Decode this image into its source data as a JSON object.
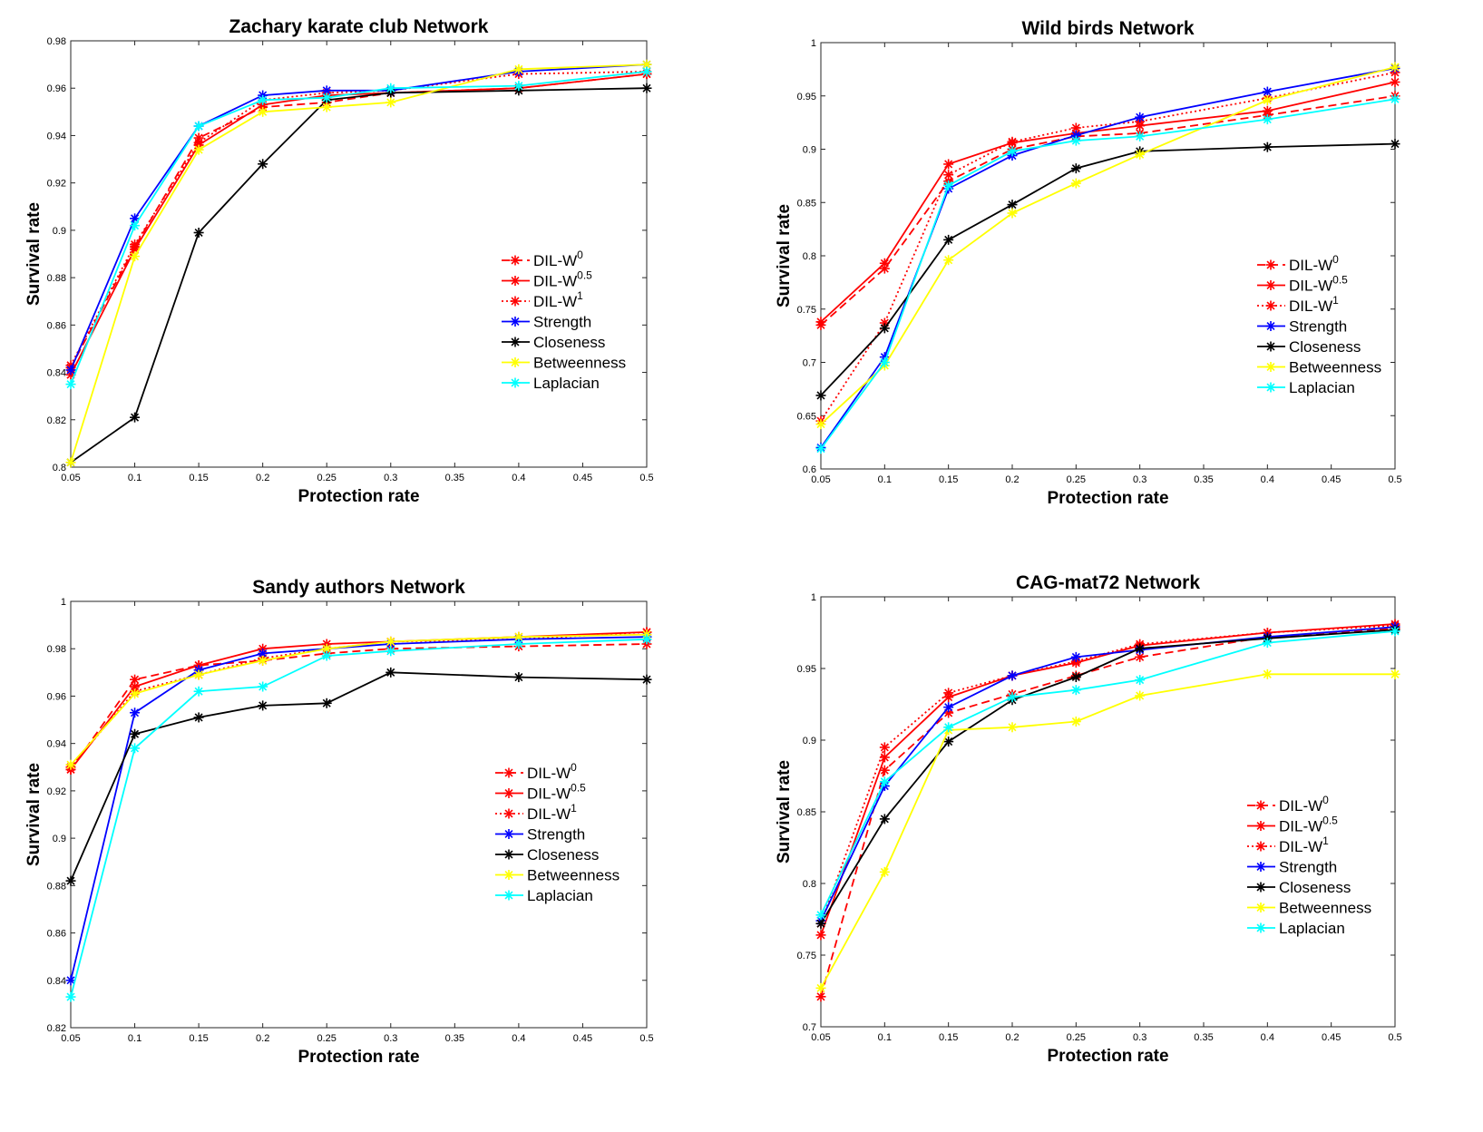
{
  "figure": {
    "legend_labels": [
      {
        "base": "DIL-W",
        "sup": "0"
      },
      {
        "base": "DIL-W",
        "sup": "0.5"
      },
      {
        "base": "DIL-W",
        "sup": "1"
      },
      {
        "base": "Strength",
        "sup": ""
      },
      {
        "base": "Closeness",
        "sup": ""
      },
      {
        "base": "Betweenness",
        "sup": ""
      },
      {
        "base": "Laplacian",
        "sup": ""
      }
    ],
    "colors": {
      "DIL-W0": "#ff0000",
      "DIL-W0.5": "#ff0000",
      "DIL-W1": "#ff0000",
      "Strength": "#0000ff",
      "Closeness": "#000000",
      "Betweenness": "#ffff00",
      "Laplacian": "#00ffff"
    }
  },
  "chart_data": [
    {
      "type": "line",
      "title": "Zachary karate club Network",
      "xlabel": "Protection rate",
      "ylabel": "Survival rate",
      "x": [
        0.05,
        0.1,
        0.15,
        0.2,
        0.25,
        0.3,
        0.4,
        0.5
      ],
      "xlim": [
        0.05,
        0.5
      ],
      "ylim": [
        0.8,
        0.98
      ],
      "xticks": [
        "0.05",
        "0.1",
        "0.15",
        "0.2",
        "0.25",
        "0.3",
        "0.35",
        "0.4",
        "0.45",
        "0.5"
      ],
      "yticks": [
        "0.8",
        "0.82",
        "0.84",
        "0.86",
        "0.88",
        "0.9",
        "0.92",
        "0.94",
        "0.96",
        "0.98"
      ],
      "legend_position": "right-middle",
      "series": [
        {
          "name": "DIL-W0",
          "values": [
            0.842,
            0.893,
            0.939,
            0.952,
            0.954,
            0.958,
            0.96,
            0.966
          ]
        },
        {
          "name": "DIL-W0.5",
          "values": [
            0.839,
            0.892,
            0.936,
            0.953,
            0.957,
            0.958,
            0.96,
            0.966
          ]
        },
        {
          "name": "DIL-W1",
          "values": [
            0.843,
            0.894,
            0.937,
            0.955,
            0.958,
            0.959,
            0.966,
            0.967
          ]
        },
        {
          "name": "Strength",
          "values": [
            0.841,
            0.905,
            0.944,
            0.957,
            0.959,
            0.959,
            0.967,
            0.97
          ]
        },
        {
          "name": "Closeness",
          "values": [
            0.802,
            0.821,
            0.899,
            0.928,
            0.955,
            0.958,
            0.959,
            0.96
          ]
        },
        {
          "name": "Betweenness",
          "values": [
            0.802,
            0.889,
            0.934,
            0.95,
            0.952,
            0.954,
            0.968,
            0.97
          ]
        },
        {
          "name": "Laplacian",
          "values": [
            0.835,
            0.902,
            0.944,
            0.955,
            0.956,
            0.96,
            0.961,
            0.967
          ]
        }
      ]
    },
    {
      "type": "line",
      "title": "Wild birds Network",
      "xlabel": "Protection rate",
      "ylabel": "Survival rate",
      "x": [
        0.05,
        0.1,
        0.15,
        0.2,
        0.25,
        0.3,
        0.4,
        0.5
      ],
      "xlim": [
        0.05,
        0.5
      ],
      "ylim": [
        0.6,
        1.0
      ],
      "xticks": [
        "0.05",
        "0.1",
        "0.15",
        "0.2",
        "0.25",
        "0.3",
        "0.35",
        "0.4",
        "0.45",
        "0.5"
      ],
      "yticks": [
        "0.6",
        "0.65",
        "0.7",
        "0.75",
        "0.8",
        "0.85",
        "0.9",
        "0.95",
        "1"
      ],
      "legend_position": "right-middle",
      "series": [
        {
          "name": "DIL-W0",
          "values": [
            0.735,
            0.788,
            0.87,
            0.9,
            0.912,
            0.915,
            0.932,
            0.95
          ]
        },
        {
          "name": "DIL-W0.5",
          "values": [
            0.738,
            0.793,
            0.886,
            0.906,
            0.915,
            0.922,
            0.936,
            0.963
          ]
        },
        {
          "name": "DIL-W1",
          "values": [
            0.645,
            0.737,
            0.876,
            0.907,
            0.92,
            0.926,
            0.948,
            0.972
          ]
        },
        {
          "name": "Strength",
          "values": [
            0.62,
            0.705,
            0.863,
            0.894,
            0.913,
            0.93,
            0.954,
            0.976
          ]
        },
        {
          "name": "Closeness",
          "values": [
            0.669,
            0.732,
            0.815,
            0.848,
            0.882,
            0.898,
            0.902,
            0.905
          ]
        },
        {
          "name": "Betweenness",
          "values": [
            0.642,
            0.697,
            0.796,
            0.84,
            0.868,
            0.895,
            0.946,
            0.977
          ]
        },
        {
          "name": "Laplacian",
          "values": [
            0.619,
            0.7,
            0.866,
            0.898,
            0.908,
            0.912,
            0.928,
            0.947
          ]
        }
      ]
    },
    {
      "type": "line",
      "title": "Sandy authors Network",
      "xlabel": "Protection rate",
      "ylabel": "Survival rate",
      "x": [
        0.05,
        0.1,
        0.15,
        0.2,
        0.25,
        0.3,
        0.4,
        0.5
      ],
      "xlim": [
        0.05,
        0.5
      ],
      "ylim": [
        0.82,
        1.0
      ],
      "xticks": [
        "0.05",
        "0.1",
        "0.15",
        "0.2",
        "0.25",
        "0.3",
        "0.35",
        "0.4",
        "0.45",
        "0.5"
      ],
      "yticks": [
        "0.82",
        "0.84",
        "0.86",
        "0.88",
        "0.9",
        "0.92",
        "0.94",
        "0.96",
        "0.98",
        "1"
      ],
      "legend_position": "right-middle",
      "series": [
        {
          "name": "DIL-W0",
          "values": [
            0.929,
            0.967,
            0.973,
            0.975,
            0.978,
            0.98,
            0.981,
            0.982
          ]
        },
        {
          "name": "DIL-W0.5",
          "values": [
            0.929,
            0.964,
            0.973,
            0.98,
            0.982,
            0.983,
            0.985,
            0.987
          ]
        },
        {
          "name": "DIL-W1",
          "values": [
            0.93,
            0.962,
            0.969,
            0.976,
            0.98,
            0.983,
            0.984,
            0.987
          ]
        },
        {
          "name": "Strength",
          "values": [
            0.84,
            0.953,
            0.971,
            0.978,
            0.98,
            0.982,
            0.984,
            0.985
          ]
        },
        {
          "name": "Closeness",
          "values": [
            0.882,
            0.944,
            0.951,
            0.956,
            0.957,
            0.97,
            0.968,
            0.967
          ]
        },
        {
          "name": "Betweenness",
          "values": [
            0.931,
            0.961,
            0.969,
            0.975,
            0.98,
            0.983,
            0.985,
            0.986
          ]
        },
        {
          "name": "Laplacian",
          "values": [
            0.833,
            0.938,
            0.962,
            0.964,
            0.977,
            0.979,
            0.982,
            0.984
          ]
        }
      ]
    },
    {
      "type": "line",
      "title": "CAG-mat72 Network",
      "xlabel": "Protection rate",
      "ylabel": "Survival rate",
      "x": [
        0.05,
        0.1,
        0.15,
        0.2,
        0.25,
        0.3,
        0.4,
        0.5
      ],
      "xlim": [
        0.05,
        0.5
      ],
      "ylim": [
        0.7,
        1.0
      ],
      "xticks": [
        "0.05",
        "0.1",
        "0.15",
        "0.2",
        "0.25",
        "0.3",
        "0.35",
        "0.4",
        "0.45",
        "0.5"
      ],
      "yticks": [
        "0.7",
        "0.75",
        "0.8",
        "0.85",
        "0.9",
        "0.95",
        "1"
      ],
      "legend_position": "right-lower",
      "series": [
        {
          "name": "DIL-W0",
          "values": [
            0.721,
            0.879,
            0.919,
            0.932,
            0.945,
            0.958,
            0.972,
            0.978
          ]
        },
        {
          "name": "DIL-W0.5",
          "values": [
            0.764,
            0.888,
            0.93,
            0.945,
            0.954,
            0.966,
            0.975,
            0.981
          ]
        },
        {
          "name": "DIL-W1",
          "values": [
            0.772,
            0.895,
            0.933,
            0.945,
            0.955,
            0.967,
            0.975,
            0.98
          ]
        },
        {
          "name": "Strength",
          "values": [
            0.774,
            0.868,
            0.923,
            0.945,
            0.958,
            0.963,
            0.972,
            0.979
          ]
        },
        {
          "name": "Closeness",
          "values": [
            0.772,
            0.845,
            0.899,
            0.928,
            0.944,
            0.964,
            0.971,
            0.977
          ]
        },
        {
          "name": "Betweenness",
          "values": [
            0.727,
            0.808,
            0.907,
            0.909,
            0.913,
            0.931,
            0.946,
            0.946
          ]
        },
        {
          "name": "Laplacian",
          "values": [
            0.778,
            0.871,
            0.909,
            0.93,
            0.935,
            0.942,
            0.968,
            0.976
          ]
        }
      ]
    }
  ]
}
